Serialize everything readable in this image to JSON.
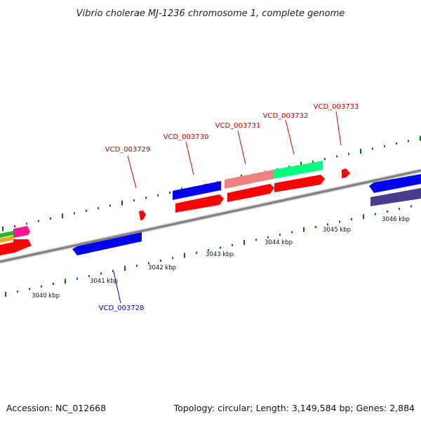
{
  "title": "Vibrio cholerae MJ-1236 chromosome 1, complete genome",
  "footer": {
    "accession": "Accession: NC_012668",
    "summary": "Topology: circular; Length: 3,149,584 bp; Genes: 2,884"
  },
  "colors": {
    "backbone": "#8a8a8a",
    "tick": "#0a6e0a",
    "label_forward": "#cc0000",
    "label_reverse": "#0000cc",
    "cds_red": "#ff0000",
    "cds_blue": "#0000ff",
    "salmon": "#f08080",
    "spring_green": "#00ff80",
    "pink": "#ff1493",
    "green": "#22bb22",
    "orange": "#ffa500",
    "slate": "#483d8b"
  },
  "scale_labels": [
    "3040 kbp",
    "3041 kbp",
    "3042 kbp",
    "3043 kbp",
    "3044 kbp",
    "3045 kbp",
    "3046 kbp"
  ],
  "gene_labels": [
    {
      "text": "VCD_003728",
      "color": "reverse"
    },
    {
      "text": "VCD_003729",
      "color": "forward"
    },
    {
      "text": "VCD_003730",
      "color": "forward"
    },
    {
      "text": "VCD_003731",
      "color": "forward"
    },
    {
      "text": "VCD_003732",
      "color": "forward"
    },
    {
      "text": "VCD_003733",
      "color": "forward"
    }
  ]
}
